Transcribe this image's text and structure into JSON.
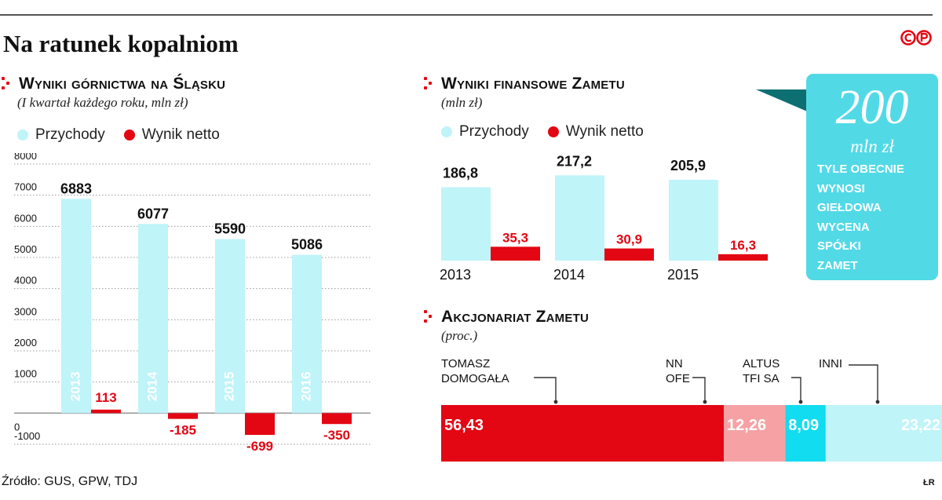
{
  "title": "Na ratunek kopalniom",
  "logo_text": "©P",
  "source": "Źródło: GUS, GPW, TDJ",
  "credit": "ŁR",
  "colors": {
    "revenue": "#bff4f9",
    "net": "#e30613",
    "accent_box": "#52d9e6",
    "tomasz": "#e30613",
    "nn": "#f6a2a4",
    "altus": "#12dcef",
    "inni": "#bff4f9",
    "dots": "#e30613"
  },
  "legend": {
    "revenue": "Przychody",
    "net": "Wynik netto"
  },
  "callout": {
    "value": "200",
    "unit": "mln zł",
    "text": "TYLE OBECNIE\nWYNOSI\nGIEŁDOWA\nWYCENA\nSPÓŁKI\nZAMET"
  },
  "chart_data": [
    {
      "type": "bar",
      "title": "Wyniki górnictwa na Śląsku",
      "subtitle": "(I kwartał każdego roku, mln zł)",
      "categories": [
        "2013",
        "2014",
        "2015",
        "2016"
      ],
      "series": [
        {
          "name": "Przychody",
          "values": [
            6883,
            6077,
            5590,
            5086
          ],
          "labels": [
            "6883",
            "6077",
            "5590",
            "5086"
          ]
        },
        {
          "name": "Wynik netto",
          "values": [
            113,
            -185,
            -699,
            -350
          ],
          "labels": [
            "113",
            "-185",
            "-699",
            "-350"
          ]
        }
      ],
      "ylim": [
        -1000,
        8000
      ],
      "yticks": [
        "-1000",
        "0",
        "1000",
        "2000",
        "3000",
        "4000",
        "5000",
        "6000",
        "7000",
        "8000"
      ],
      "ytick_values": [
        -1000,
        0,
        1000,
        2000,
        3000,
        4000,
        5000,
        6000,
        7000,
        8000
      ],
      "grid": true
    },
    {
      "type": "bar",
      "title": "Wyniki finansowe Zametu",
      "subtitle": "(mln zł)",
      "categories": [
        "2013",
        "2014",
        "2015"
      ],
      "series": [
        {
          "name": "Przychody",
          "values": [
            186.8,
            217.2,
            205.9
          ],
          "labels": [
            "186,8",
            "217,2",
            "205,9"
          ]
        },
        {
          "name": "Wynik netto",
          "values": [
            35.3,
            30.9,
            16.3
          ],
          "labels": [
            "35,3",
            "30,9",
            "16,3"
          ]
        }
      ],
      "grid": false
    },
    {
      "type": "bar",
      "orientation": "stacked-horizontal",
      "title": "Akcjonariat Zametu",
      "subtitle": "(proc.)",
      "segments": [
        {
          "name": "TOMASZ DOMOGAŁA",
          "value": 56.43,
          "label": "56,43"
        },
        {
          "name": "NN OFE",
          "value": 12.26,
          "label": "12,26"
        },
        {
          "name": "ALTUS TFI SA",
          "value": 8.09,
          "label": "8,09"
        },
        {
          "name": "INNI",
          "value": 23.22,
          "label": "23,22"
        }
      ]
    }
  ]
}
